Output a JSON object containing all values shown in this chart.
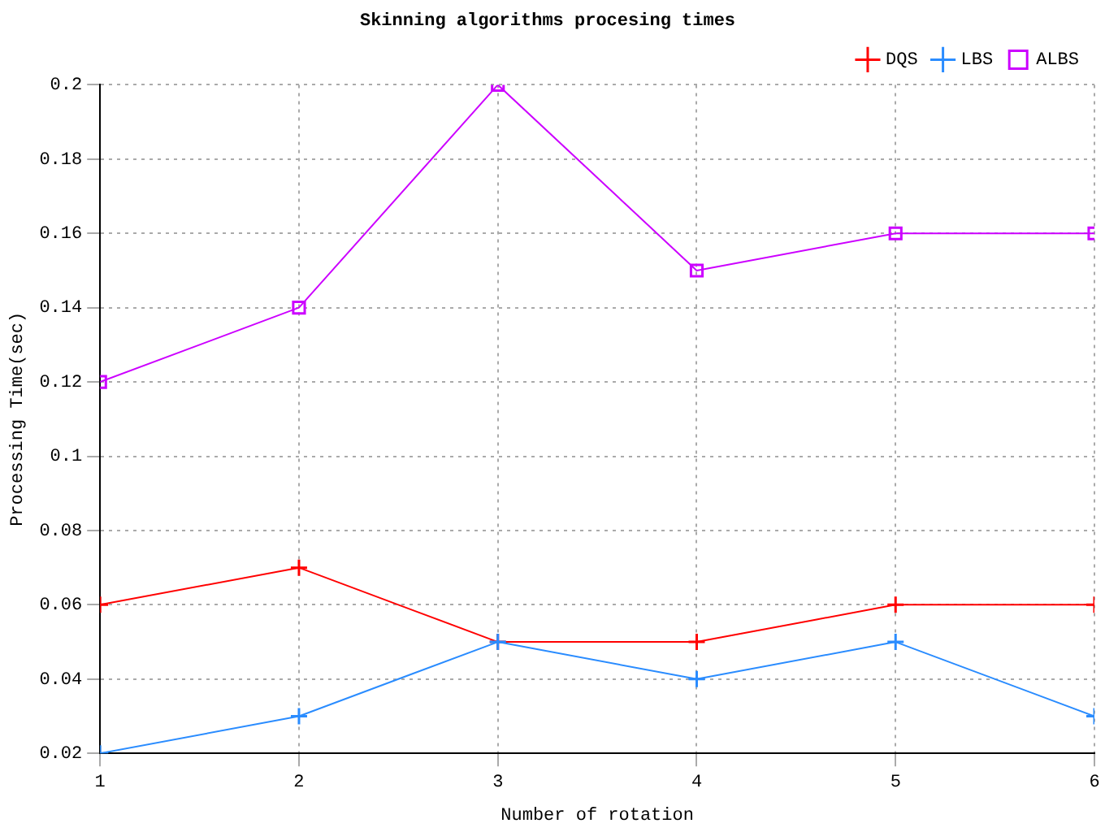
{
  "chart_data": {
    "type": "line",
    "title": "Skinning algorithms procesing times",
    "xlabel": "Number of rotation",
    "ylabel": "Processing Time(sec)",
    "x": [
      1,
      2,
      3,
      4,
      5,
      6
    ],
    "series": [
      {
        "name": "DQS",
        "color": "#ff0000",
        "marker": "cross",
        "values": [
          0.06,
          0.07,
          0.05,
          0.05,
          0.06,
          0.06
        ]
      },
      {
        "name": "LBS",
        "color": "#2a8cff",
        "marker": "cross",
        "values": [
          0.02,
          0.03,
          0.05,
          0.04,
          0.05,
          0.03
        ]
      },
      {
        "name": "ALBS",
        "color": "#cc00ff",
        "marker": "square",
        "values": [
          0.12,
          0.14,
          0.2,
          0.15,
          0.16,
          0.16
        ]
      }
    ],
    "xlim": [
      1,
      6
    ],
    "xticks": [
      1,
      2,
      3,
      4,
      5,
      6
    ],
    "ylim": [
      0.02,
      0.2
    ],
    "yticks": [
      0.02,
      0.04,
      0.06,
      0.08,
      0.1,
      0.12,
      0.14,
      0.16,
      0.18,
      0.2
    ],
    "grid": true,
    "legend": "top right",
    "line_style": "solid"
  }
}
